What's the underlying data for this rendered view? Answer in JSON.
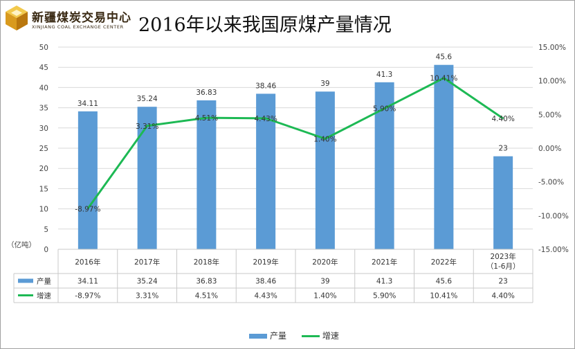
{
  "header": {
    "logo_cn": "新疆煤炭交易中心",
    "logo_en": "XINJIANG COAL EXCHANGE CENTER",
    "title": "2016年以来我国原煤产量情况"
  },
  "colors": {
    "bar": "#5b9bd5",
    "line": "#1db954",
    "grid": "#d9d9d9",
    "logo_gold": "#e8b83a"
  },
  "chart_data": {
    "type": "bar",
    "title": "2016年以来我国原煤产量情况",
    "categories": [
      "2016年",
      "2017年",
      "2018年",
      "2019年",
      "2020年",
      "2021年",
      "2022年",
      "2023年\n（1-6月）"
    ],
    "y_unit_label": "（亿吨）",
    "ylim": [
      0,
      50
    ],
    "y_ticks": [
      0,
      5,
      10,
      15,
      20,
      25,
      30,
      35,
      40,
      45,
      50
    ],
    "y2lim": [
      -15,
      15
    ],
    "y2_ticks": [
      "-15.00%",
      "-10.00%",
      "-5.00%",
      "0.00%",
      "5.00%",
      "10.00%",
      "15.00%"
    ],
    "grid": true,
    "legend_position": "bottom",
    "series": [
      {
        "name": "产量",
        "type": "bar",
        "axis": "left",
        "values": [
          34.11,
          35.24,
          36.83,
          38.46,
          39,
          41.3,
          45.6,
          23
        ],
        "labels": [
          "34.11",
          "35.24",
          "36.83",
          "38.46",
          "39",
          "41.3",
          "45.6",
          "23"
        ]
      },
      {
        "name": "增速",
        "type": "line",
        "axis": "right",
        "values": [
          -8.97,
          3.31,
          4.51,
          4.43,
          1.4,
          5.9,
          10.41,
          4.4
        ],
        "labels": [
          "-8.97%",
          "3.31%",
          "4.51%",
          "4.43%",
          "1.40%",
          "5.90%",
          "10.41%",
          "4.40%"
        ]
      }
    ]
  },
  "legend": {
    "bar_label": "产量",
    "line_label": "增速"
  }
}
